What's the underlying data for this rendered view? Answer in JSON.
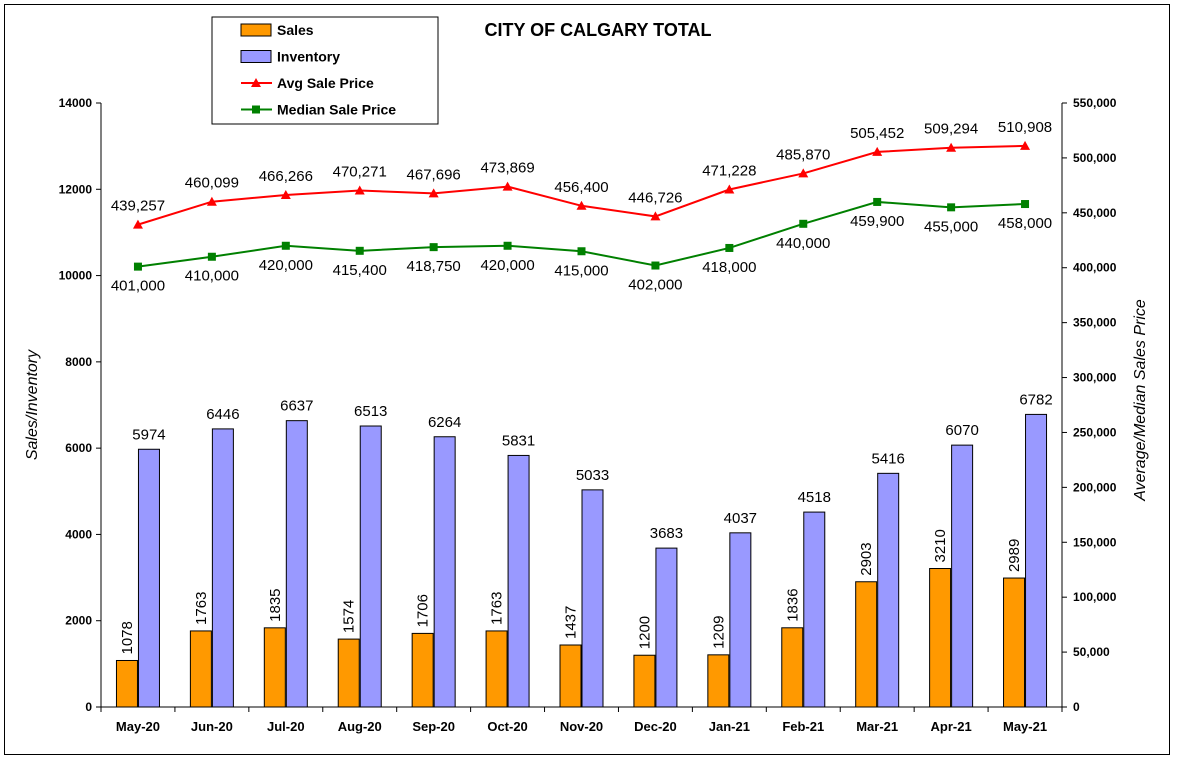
{
  "chart_data": {
    "type": "bar",
    "title": "CITY OF CALGARY TOTAL",
    "ylabel": "Sales/Inventory",
    "y2label": "Average/Median Sales Price",
    "categories": [
      "May-20",
      "Jun-20",
      "Jul-20",
      "Aug-20",
      "Sep-20",
      "Oct-20",
      "Nov-20",
      "Dec-20",
      "Jan-21",
      "Feb-21",
      "Mar-21",
      "Apr-21",
      "May-21"
    ],
    "ylim": [
      0,
      14000
    ],
    "y_ticks": [
      "0",
      "2000",
      "4000",
      "6000",
      "8000",
      "10000",
      "12000",
      "14000"
    ],
    "y2lim": [
      0,
      550000
    ],
    "y2_ticks": [
      "0",
      "50,000",
      "100,000",
      "150,000",
      "200,000",
      "250,000",
      "300,000",
      "350,000",
      "400,000",
      "450,000",
      "500,000",
      "550,000"
    ],
    "grid": false,
    "legend_position": "top-left",
    "series": [
      {
        "name": "Sales",
        "type": "bar",
        "axis": "left",
        "color": "#FF9900",
        "values": [
          1078,
          1763,
          1835,
          1574,
          1706,
          1763,
          1437,
          1200,
          1209,
          1836,
          2903,
          3210,
          2989
        ],
        "labels": [
          "1078",
          "1763",
          "1835",
          "1574",
          "1706",
          "1763",
          "1437",
          "1200",
          "1209",
          "1836",
          "2903",
          "3210",
          "2989"
        ]
      },
      {
        "name": "Inventory",
        "type": "bar",
        "axis": "left",
        "color": "#9999FF",
        "values": [
          5974,
          6446,
          6637,
          6513,
          6264,
          5831,
          5033,
          3683,
          4037,
          4518,
          5416,
          6070,
          6782
        ],
        "labels": [
          "5974",
          "6446",
          "6637",
          "6513",
          "6264",
          "5831",
          "5033",
          "3683",
          "4037",
          "4518",
          "5416",
          "6070",
          "6782"
        ]
      },
      {
        "name": "Avg Sale Price",
        "type": "line",
        "axis": "right",
        "color": "#FF0000",
        "marker": "triangle",
        "values": [
          439257,
          460099,
          466266,
          470271,
          467696,
          473869,
          456400,
          446726,
          471228,
          485870,
          505452,
          509294,
          510908
        ],
        "labels": [
          "439,257",
          "460,099",
          "466,266",
          "470,271",
          "467,696",
          "473,869",
          "456,400",
          "446,726",
          "471,228",
          "485,870",
          "505,452",
          "509,294",
          "510,908"
        ]
      },
      {
        "name": "Median Sale Price",
        "type": "line",
        "axis": "right",
        "color": "#008000",
        "marker": "square",
        "values": [
          401000,
          410000,
          420000,
          415400,
          418750,
          420000,
          415000,
          402000,
          418000,
          440000,
          459900,
          455000,
          458000
        ],
        "labels": [
          "401,000",
          "410,000",
          "420,000",
          "415,400",
          "418,750",
          "420,000",
          "415,000",
          "402,000",
          "418,000",
          "440,000",
          "459,900",
          "455,000",
          "458,000"
        ]
      }
    ]
  }
}
